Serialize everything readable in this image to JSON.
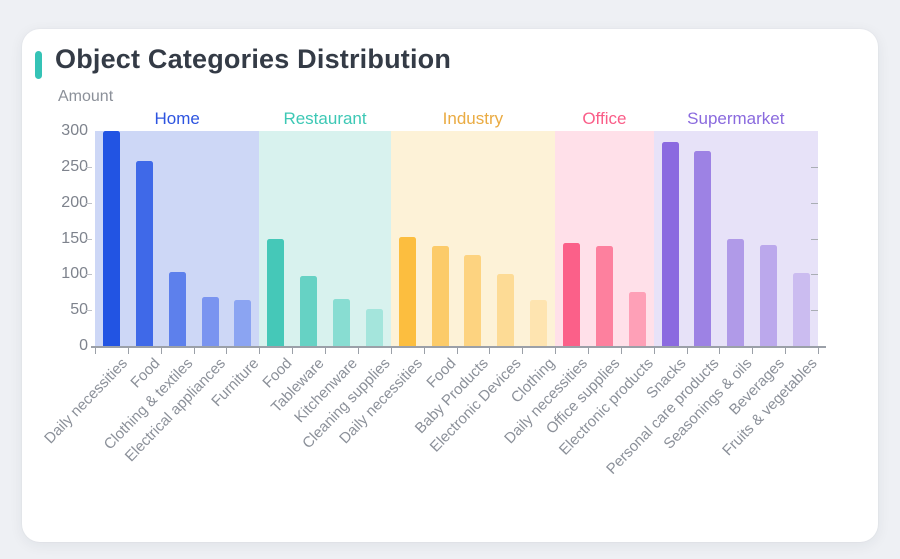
{
  "card": {
    "title": "Object Categories Distribution",
    "accent_color": "#35c3b6"
  },
  "chart_data": {
    "type": "bar",
    "title": "Object Categories Distribution",
    "xlabel": "",
    "ylabel": "Amount",
    "ylim": [
      0,
      300
    ],
    "yticks": [
      0,
      50,
      100,
      150,
      200,
      250,
      300
    ],
    "grid": false,
    "legend_position": "group-headers-above-bands",
    "axis_color": "#9ba0a8",
    "label_color": "#8b9099",
    "groups": [
      {
        "name": "Home",
        "header_color": "#2d54e0",
        "band_color": "#cdd7f6",
        "categories": [
          "Daily necessities",
          "Food",
          "Clothing & textiles",
          "Electrical appliances",
          "Furniture"
        ],
        "values": [
          300,
          258,
          103,
          69,
          64
        ],
        "bar_colors": [
          "#2254e3",
          "#3f69e8",
          "#5d80ec",
          "#7a94f0",
          "#8ba4f2"
        ]
      },
      {
        "name": "Restaurant",
        "header_color": "#3dc8b5",
        "band_color": "#d8f2ee",
        "categories": [
          "Food",
          "Tableware",
          "Kitchenware",
          "Cleaning supplies"
        ],
        "values": [
          149,
          98,
          66,
          52
        ],
        "bar_colors": [
          "#45c8b8",
          "#66d2c4",
          "#88ddd2",
          "#a4e5dc"
        ]
      },
      {
        "name": "Industry",
        "header_color": "#eaab42",
        "band_color": "#fdf2d7",
        "categories": [
          "Daily necessities",
          "Food",
          "Baby Products",
          "Electronic Devices",
          "Clothing"
        ],
        "values": [
          152,
          140,
          127,
          100,
          64
        ],
        "bar_colors": [
          "#fcbe3f",
          "#fccb69",
          "#fdd380",
          "#fddb95",
          "#fee4b0"
        ]
      },
      {
        "name": "Office",
        "header_color": "#fa5d88",
        "band_color": "#ffe0e9",
        "categories": [
          "Daily necessities",
          "Office supplies",
          "Electronic products"
        ],
        "values": [
          144,
          140,
          75
        ],
        "bar_colors": [
          "#fb6089",
          "#fd809e",
          "#fea0b7"
        ]
      },
      {
        "name": "Supermarket",
        "header_color": "#8a6ade",
        "band_color": "#e7e2f8",
        "categories": [
          "Snacks",
          "Personal care products",
          "Seasonings & oils",
          "Beverages",
          "Fruits & vegetables"
        ],
        "values": [
          285,
          272,
          149,
          141,
          102
        ],
        "bar_colors": [
          "#8b6ae0",
          "#9d82e4",
          "#b09ae8",
          "#bba8ec",
          "#cbbcf0"
        ]
      }
    ]
  }
}
